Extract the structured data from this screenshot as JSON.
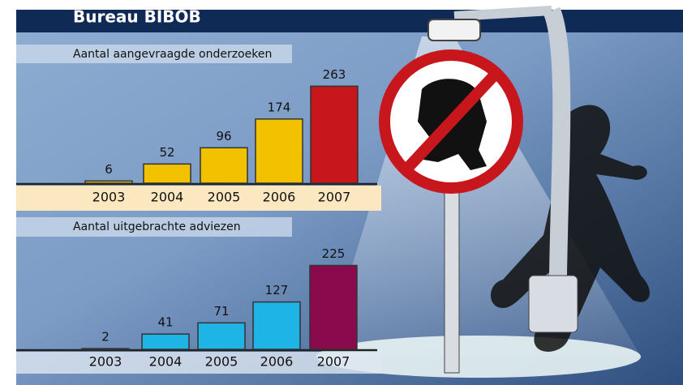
{
  "title": "Bureau BIBOB",
  "chart_data": [
    {
      "type": "bar",
      "title": "Aantal aangevraagde onderzoeken",
      "categories": [
        "2003",
        "2004",
        "2005",
        "2006",
        "2007"
      ],
      "values": [
        6,
        52,
        96,
        174,
        263
      ],
      "colors": [
        "#f2c200",
        "#f2c200",
        "#f2c200",
        "#f2c200",
        "#c8161d"
      ]
    },
    {
      "type": "bar",
      "title": "Aantal uitgebrachte adviezen",
      "categories": [
        "2003",
        "2004",
        "2005",
        "2006",
        "2007"
      ],
      "values": [
        2,
        41,
        71,
        127,
        225
      ],
      "colors": [
        "#1fb4e6",
        "#1fb4e6",
        "#1fb4e6",
        "#1fb4e6",
        "#8a0b4d"
      ]
    }
  ]
}
